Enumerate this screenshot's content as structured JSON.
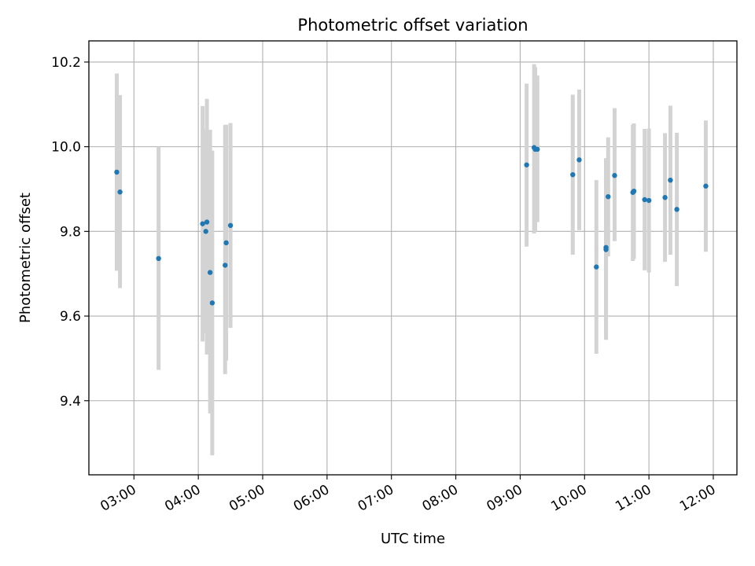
{
  "chart_data": {
    "type": "scatter",
    "title": "Photometric offset variation",
    "xlabel": "UTC time",
    "ylabel": "Photometric offset",
    "x_ticks": [
      "03:00",
      "04:00",
      "05:00",
      "06:00",
      "07:00",
      "08:00",
      "09:00",
      "10:00",
      "11:00",
      "12:00"
    ],
    "y_ticks": [
      "9.4",
      "9.6",
      "9.8",
      "10.0",
      "10.2"
    ],
    "xlim": [
      "02:18",
      "12:22"
    ],
    "ylim": [
      9.225,
      10.25
    ],
    "grid": true,
    "marker_color": "#1f77b4",
    "errorbar_color": "#d3d3d3",
    "points": [
      {
        "x": "02:44",
        "y": 9.94,
        "ymin": 9.707,
        "ymax": 10.173
      },
      {
        "x": "02:47",
        "y": 9.893,
        "ymin": 9.666,
        "ymax": 10.122
      },
      {
        "x": "03:23",
        "y": 9.736,
        "ymin": 9.473,
        "ymax": 10.0
      },
      {
        "x": "04:04",
        "y": 9.818,
        "ymin": 9.54,
        "ymax": 10.096
      },
      {
        "x": "04:07",
        "y": 9.8,
        "ymin": 9.559,
        "ymax": 10.041
      },
      {
        "x": "04:08",
        "y": 9.822,
        "ymin": 9.509,
        "ymax": 10.113
      },
      {
        "x": "04:11",
        "y": 9.703,
        "ymin": 9.37,
        "ymax": 10.04
      },
      {
        "x": "04:13",
        "y": 9.631,
        "ymin": 9.271,
        "ymax": 9.991
      },
      {
        "x": "04:25",
        "y": 9.72,
        "ymin": 9.463,
        "ymax": 10.051
      },
      {
        "x": "04:26",
        "y": 9.773,
        "ymin": 9.495,
        "ymax": 10.052
      },
      {
        "x": "04:30",
        "y": 9.814,
        "ymin": 9.572,
        "ymax": 10.056
      },
      {
        "x": "09:06",
        "y": 9.957,
        "ymin": 9.764,
        "ymax": 10.149
      },
      {
        "x": "09:13",
        "y": 9.998,
        "ymin": 9.795,
        "ymax": 10.195
      },
      {
        "x": "09:14",
        "y": 9.994,
        "ymin": 9.8,
        "ymax": 10.188
      },
      {
        "x": "09:16",
        "y": 9.994,
        "ymin": 9.822,
        "ymax": 10.168
      },
      {
        "x": "09:49",
        "y": 9.934,
        "ymin": 9.745,
        "ymax": 10.123
      },
      {
        "x": "09:55",
        "y": 9.969,
        "ymin": 9.803,
        "ymax": 10.135
      },
      {
        "x": "10:11",
        "y": 9.716,
        "ymin": 9.511,
        "ymax": 9.921
      },
      {
        "x": "10:20",
        "y": 9.762,
        "ymin": 9.551,
        "ymax": 9.973
      },
      {
        "x": "10:20",
        "y": 9.757,
        "ymin": 9.544,
        "ymax": 9.97
      },
      {
        "x": "10:22",
        "y": 9.882,
        "ymin": 9.741,
        "ymax": 10.022
      },
      {
        "x": "10:28",
        "y": 9.932,
        "ymin": 9.777,
        "ymax": 10.091
      },
      {
        "x": "10:45",
        "y": 9.892,
        "ymin": 9.73,
        "ymax": 10.052
      },
      {
        "x": "10:46",
        "y": 9.895,
        "ymin": 9.735,
        "ymax": 10.055
      },
      {
        "x": "10:56",
        "y": 9.875,
        "ymin": 9.708,
        "ymax": 10.042
      },
      {
        "x": "11:00",
        "y": 9.873,
        "ymin": 9.703,
        "ymax": 10.043
      },
      {
        "x": "11:15",
        "y": 9.88,
        "ymin": 9.728,
        "ymax": 10.032
      },
      {
        "x": "11:20",
        "y": 9.921,
        "ymin": 9.745,
        "ymax": 10.097
      },
      {
        "x": "11:26",
        "y": 9.852,
        "ymin": 9.671,
        "ymax": 10.033
      },
      {
        "x": "11:53",
        "y": 9.907,
        "ymin": 9.752,
        "ymax": 10.062
      }
    ]
  }
}
